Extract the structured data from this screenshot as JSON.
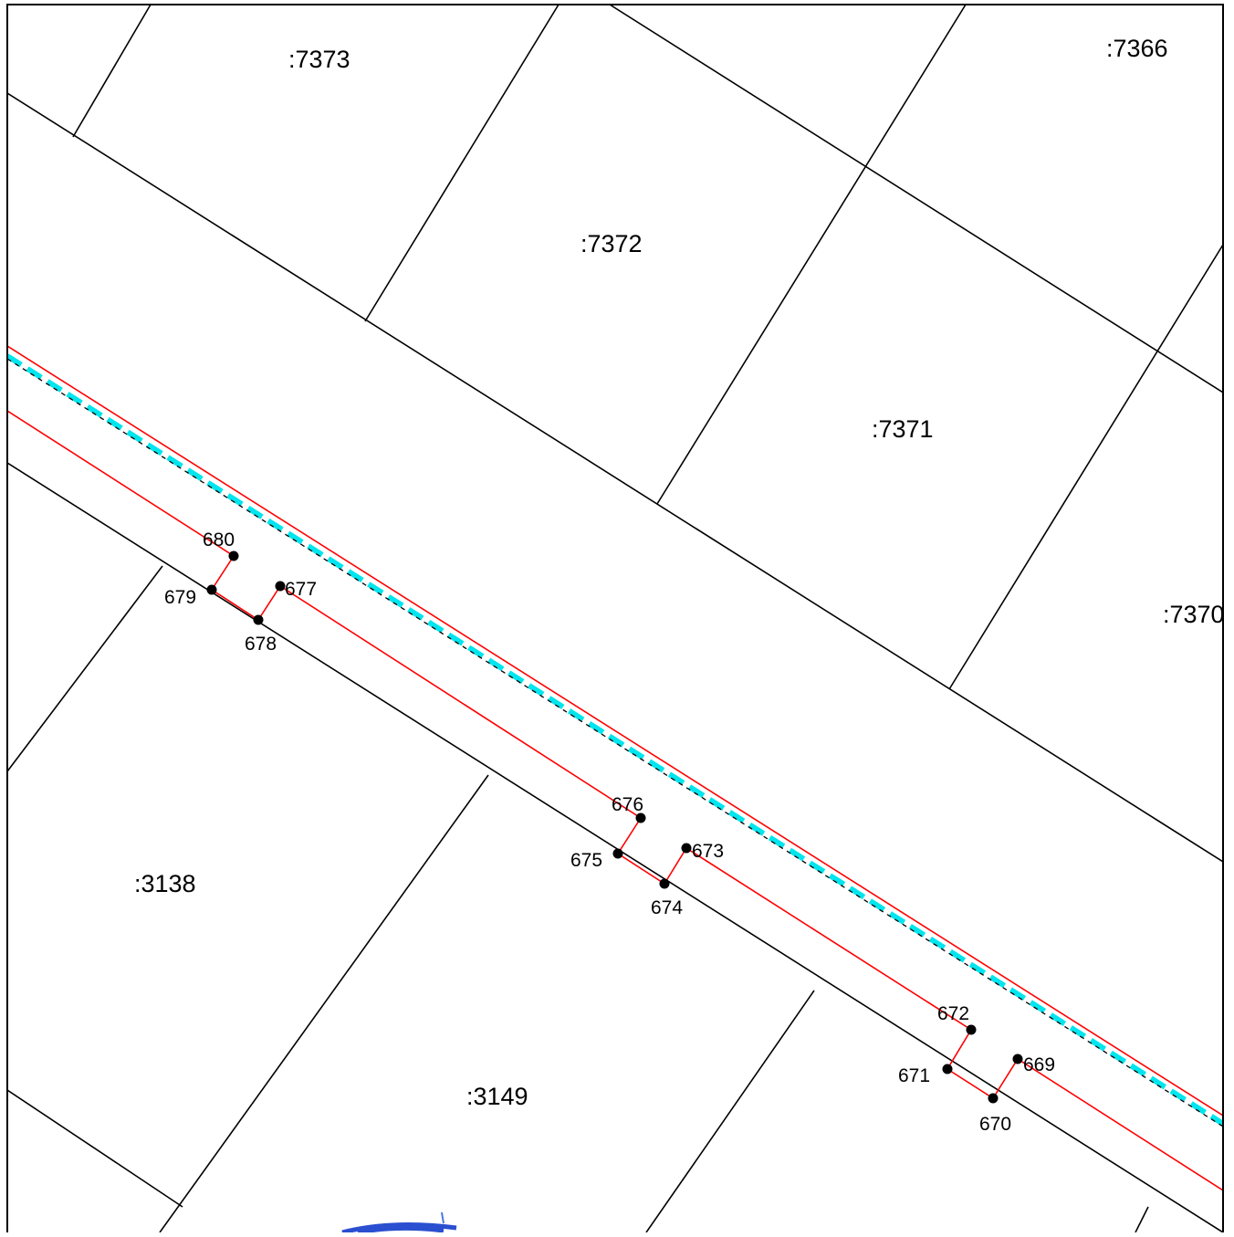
{
  "map": {
    "parcels": [
      ":7373",
      ":7366",
      ":7372",
      ":7371",
      ":7370",
      ":3138",
      ":3149"
    ],
    "points": [
      "669",
      "670",
      "671",
      "672",
      "673",
      "674",
      "675",
      "676",
      "677",
      "678",
      "679",
      "680"
    ]
  },
  "colors": {
    "parcel_boundary": "#000000",
    "red_line": "#ff0000",
    "cyan_dashed_line": "#00e5ee",
    "point_marker": "#000000",
    "stamp": "#2a4fd0"
  },
  "icons": {
    "point_marker": "filled-circle-icon"
  }
}
